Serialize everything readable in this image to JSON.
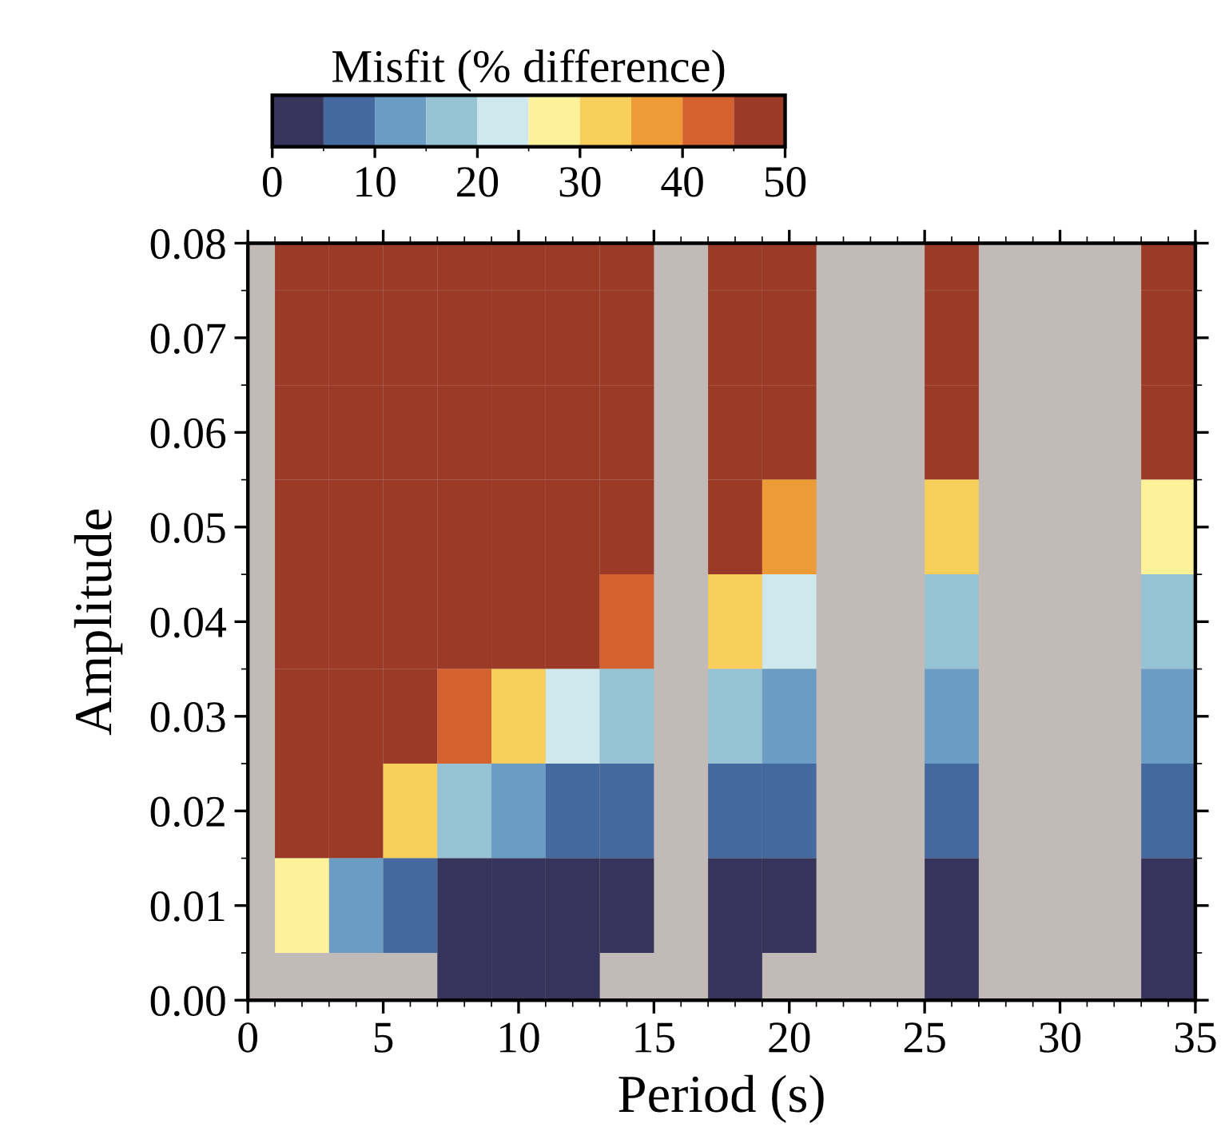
{
  "chart_data": {
    "type": "heatmap",
    "xlabel": "Period (s)",
    "ylabel": "Amplitude",
    "clabel": "Misfit (% difference)",
    "x": [
      2,
      4,
      6,
      8,
      10,
      12,
      14,
      16,
      18,
      20,
      22,
      24,
      26,
      28,
      30,
      32,
      34
    ],
    "y_categories": [
      "0.08",
      "0.07",
      "0.06",
      "0.05",
      "0.04",
      "0.03",
      "0.02",
      "0.01",
      "0.00"
    ],
    "cells": [
      [
        47.5,
        47.5,
        47.5,
        47.5,
        47.5,
        47.5,
        47.5,
        null,
        47.5,
        47.5,
        null,
        null,
        47.5,
        null,
        null,
        null,
        47.5
      ],
      [
        47.5,
        47.5,
        47.5,
        47.5,
        47.5,
        47.5,
        47.5,
        null,
        47.5,
        47.5,
        null,
        null,
        47.5,
        null,
        null,
        null,
        47.5
      ],
      [
        47.5,
        47.5,
        47.5,
        47.5,
        47.5,
        47.5,
        47.5,
        null,
        47.5,
        47.5,
        null,
        null,
        47.5,
        null,
        null,
        null,
        47.5
      ],
      [
        47.5,
        47.5,
        47.5,
        47.5,
        47.5,
        47.5,
        47.5,
        null,
        47.5,
        37.5,
        null,
        null,
        32.5,
        null,
        null,
        null,
        27.5
      ],
      [
        47.5,
        47.5,
        47.5,
        47.5,
        47.5,
        47.5,
        42.5,
        null,
        32.5,
        22.5,
        null,
        null,
        17.5,
        null,
        null,
        null,
        17.5
      ],
      [
        47.5,
        47.5,
        47.5,
        42.5,
        32.5,
        22.5,
        17.5,
        null,
        17.5,
        12.5,
        null,
        null,
        12.5,
        null,
        null,
        null,
        12.5
      ],
      [
        47.5,
        47.5,
        32.5,
        17.5,
        12.5,
        7.5,
        7.5,
        null,
        7.5,
        7.5,
        null,
        null,
        7.5,
        null,
        null,
        null,
        7.5
      ],
      [
        27.5,
        12.5,
        7.5,
        2.5,
        2.5,
        2.5,
        2.5,
        null,
        2.5,
        2.5,
        null,
        null,
        2.5,
        null,
        null,
        null,
        2.5
      ],
      [
        null,
        null,
        null,
        2.5,
        2.5,
        2.5,
        null,
        null,
        2.5,
        null,
        null,
        null,
        2.5,
        null,
        null,
        null,
        2.5
      ]
    ],
    "colors": [
      "#36345a",
      "#44699f",
      "#6a9cc4",
      "#95c3d4",
      "#cfe8ee",
      "#fdf29a",
      "#f7cf5a",
      "#ec9b37",
      "#d5622e",
      "#9c3a28"
    ],
    "clim": [
      0,
      50
    ],
    "cticks": [
      0,
      10,
      20,
      30,
      40,
      50
    ],
    "xlim": [
      0,
      35
    ],
    "xticks": [
      0,
      5,
      10,
      15,
      20,
      25,
      30,
      35
    ],
    "grid": false
  }
}
